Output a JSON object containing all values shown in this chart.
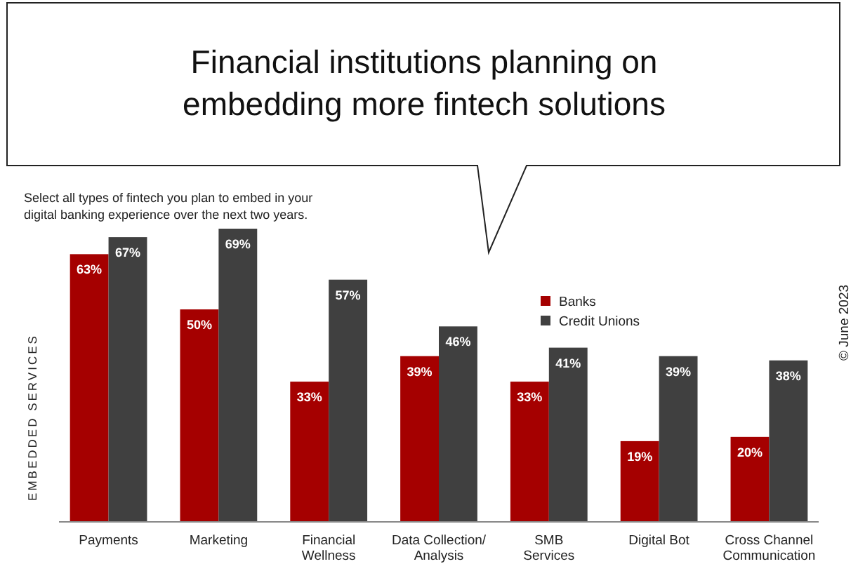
{
  "chart_data": {
    "type": "bar",
    "title": "Financial institutions planning on embedding more fintech solutions",
    "subtitle": "Select all types of fintech you plan to embed in your digital banking experience over the next two years.",
    "ylabel": "EMBEDDED SERVICES",
    "annotations": [
      "© June 2023"
    ],
    "categories": [
      "Payments",
      "Marketing",
      "Financial\nWellness",
      "Data Collection/\nAnalysis",
      "SMB\nServices",
      "Digital Bot",
      "Cross Channel\nCommunication"
    ],
    "series": [
      {
        "name": "Banks",
        "color": "#a50000",
        "values": [
          63,
          50,
          33,
          39,
          33,
          19,
          20
        ],
        "value_labels": [
          "63%",
          "50%",
          "33%",
          "39%",
          "33%",
          "19%",
          "20%"
        ]
      },
      {
        "name": "Credit Unions",
        "color": "#404040",
        "values": [
          67,
          69,
          57,
          46,
          41,
          39,
          38
        ],
        "value_labels": [
          "67%",
          "69%",
          "57%",
          "46%",
          "41%",
          "39%",
          "38%"
        ]
      }
    ],
    "legend": "right"
  }
}
